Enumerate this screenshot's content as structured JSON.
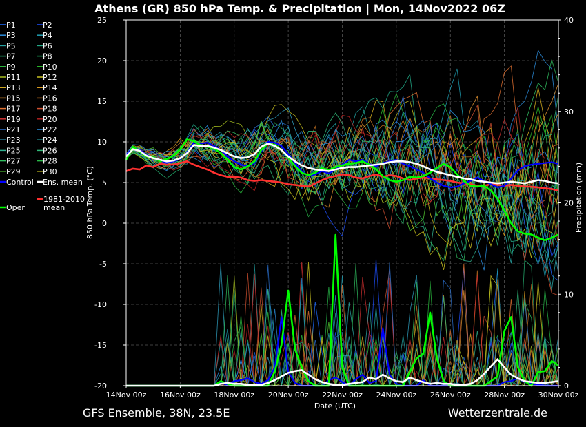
{
  "chart_data": {
    "type": "line",
    "title": "Athens  (GR)  850 hPa Temp. & Precipitation | Mon, 14Nov2022 06Z",
    "ylabel": "850 hPa Temp. (°C)",
    "y2label": "Precipitation (mm)",
    "xlabel": "Date (UTC)",
    "ylim": [
      -20,
      25
    ],
    "y2lim": [
      0,
      40
    ],
    "yticks": [
      25,
      20,
      15,
      10,
      5,
      0,
      -5,
      -10,
      -15,
      -20
    ],
    "y2ticks": [
      40,
      30,
      20,
      10,
      0
    ],
    "xlim": [
      "14Nov 00z",
      "30Nov 00z"
    ],
    "xticks": [
      "14Nov 00z",
      "16Nov 00z",
      "18Nov 00z",
      "20Nov 00z",
      "22Nov 00z",
      "24Nov 00z",
      "26Nov 00z",
      "28Nov 00z",
      "30Nov 00z"
    ],
    "grid": true,
    "footer_left": "GFS Ensemble, 38N, 23.5E",
    "footer_right": "Wetterzentrale.de",
    "legend": [
      {
        "name": "P1",
        "color": "#1e6bff"
      },
      {
        "name": "P2",
        "color": "#1e50ff"
      },
      {
        "name": "P3",
        "color": "#2b8cdb"
      },
      {
        "name": "P4",
        "color": "#1f9fb3"
      },
      {
        "name": "P5",
        "color": "#22a0a0"
      },
      {
        "name": "P6",
        "color": "#22aa88"
      },
      {
        "name": "P7",
        "color": "#25b070"
      },
      {
        "name": "P8",
        "color": "#1fb060"
      },
      {
        "name": "P9",
        "color": "#2cc040"
      },
      {
        "name": "P10",
        "color": "#2ac02a"
      },
      {
        "name": "P11",
        "color": "#a8c020"
      },
      {
        "name": "P12",
        "color": "#c8c020"
      },
      {
        "name": "P13",
        "color": "#d8b020"
      },
      {
        "name": "P14",
        "color": "#e0a020"
      },
      {
        "name": "P15",
        "color": "#e09030"
      },
      {
        "name": "P16",
        "color": "#c07020"
      },
      {
        "name": "P17",
        "color": "#e07030"
      },
      {
        "name": "P18",
        "color": "#d05030"
      },
      {
        "name": "P19",
        "color": "#d03030"
      },
      {
        "name": "P20",
        "color": "#b02020"
      },
      {
        "name": "P21",
        "color": "#2a70d0"
      },
      {
        "name": "P22",
        "color": "#2a90e0"
      },
      {
        "name": "P23",
        "color": "#30a0c0"
      },
      {
        "name": "P24",
        "color": "#2aa8a8"
      },
      {
        "name": "P25",
        "color": "#30b090"
      },
      {
        "name": "P26",
        "color": "#30b878"
      },
      {
        "name": "P27",
        "color": "#30c060"
      },
      {
        "name": "P28",
        "color": "#28b848"
      },
      {
        "name": "P29",
        "color": "#50c830"
      },
      {
        "name": "P30",
        "color": "#d0c820"
      },
      {
        "name": "Control",
        "color": "#0000ff"
      },
      {
        "name": "Ens. mean",
        "color": "#ffffff"
      },
      {
        "name": "Oper",
        "color": "#00ff00"
      },
      {
        "name": "1981-2010 mean",
        "color": "#ff3030"
      }
    ],
    "x_days": [
      0,
      0.25,
      0.5,
      0.75,
      1,
      1.25,
      1.5,
      1.75,
      2,
      2.25,
      2.5,
      2.75,
      3,
      3.25,
      3.5,
      3.75,
      4,
      4.25,
      4.5,
      4.75,
      5,
      5.25,
      5.5,
      5.75,
      6,
      6.25,
      6.5,
      6.75,
      7,
      7.25,
      7.5,
      7.75,
      8,
      8.25,
      8.5,
      8.75,
      9,
      9.25,
      9.5,
      9.75,
      10,
      10.25,
      10.5,
      10.75,
      11,
      11.25,
      11.5,
      11.75,
      12,
      12.25,
      12.5,
      12.75,
      13,
      13.25,
      13.5,
      13.75,
      14,
      14.25,
      14.5,
      14.75,
      15,
      15.25,
      15.5,
      15.75,
      16
    ],
    "series": [
      {
        "name": "Ens. mean",
        "color": "#ffffff",
        "axis": "temp",
        "values": [
          8.2,
          9.1,
          8.9,
          8.3,
          8.0,
          7.8,
          7.6,
          7.7,
          8.0,
          8.6,
          9.6,
          9.5,
          9.5,
          9.3,
          9.0,
          8.6,
          8.2,
          8.0,
          8.1,
          8.5,
          9.4,
          9.8,
          9.5,
          9.0,
          8.2,
          7.6,
          7.1,
          6.8,
          6.6,
          6.5,
          6.4,
          6.6,
          6.8,
          6.9,
          6.9,
          7.0,
          7.1,
          7.2,
          7.3,
          7.5,
          7.6,
          7.6,
          7.5,
          7.3,
          7.0,
          6.6,
          6.3,
          6.1,
          5.9,
          5.7,
          5.5,
          5.4,
          5.2,
          5.1,
          5.0,
          4.9,
          5.0,
          5.1,
          5.0,
          4.9,
          5.1,
          5.3,
          5.2,
          5.0,
          4.9
        ]
      },
      {
        "name": "Control",
        "color": "#0000ff",
        "axis": "temp",
        "values": [
          8.4,
          9.3,
          9.0,
          8.4,
          8.0,
          7.7,
          7.4,
          7.6,
          7.9,
          8.7,
          9.9,
          9.8,
          9.9,
          9.5,
          9.0,
          8.2,
          7.6,
          7.2,
          7.0,
          7.4,
          8.8,
          10.0,
          9.9,
          9.5,
          8.5,
          7.4,
          6.4,
          5.8,
          6.0,
          6.4,
          6.1,
          6.6,
          7.2,
          7.8,
          7.6,
          7.8,
          7.3,
          7.0,
          7.4,
          7.6,
          7.8,
          7.3,
          7.0,
          6.6,
          6.2,
          5.5,
          5.0,
          4.6,
          4.4,
          4.5,
          4.9,
          5.2,
          5.6,
          5.2,
          4.8,
          4.4,
          4.6,
          5.5,
          6.5,
          7.0,
          7.2,
          7.3,
          7.4,
          7.5,
          7.3
        ]
      },
      {
        "name": "Oper",
        "color": "#00ff00",
        "axis": "temp",
        "values": [
          7.8,
          9.4,
          8.8,
          8.2,
          8.1,
          7.6,
          7.9,
          8.3,
          9.1,
          10.3,
          10.1,
          9.6,
          9.4,
          9.2,
          8.6,
          7.8,
          6.9,
          6.6,
          7.0,
          7.6,
          9.0,
          9.8,
          9.6,
          9.0,
          8.1,
          7.0,
          6.2,
          5.9,
          6.2,
          6.8,
          6.5,
          6.9,
          7.1,
          7.3,
          7.4,
          7.6,
          7.2,
          6.6,
          5.8,
          5.3,
          5.1,
          5.3,
          5.7,
          5.6,
          5.8,
          6.2,
          6.8,
          7.3,
          6.9,
          6.0,
          5.2,
          4.6,
          4.5,
          4.6,
          4.0,
          3.0,
          1.5,
          0.0,
          -1.0,
          -1.3,
          -1.4,
          -1.8,
          -2.1,
          -1.8,
          -1.4
        ]
      },
      {
        "name": "1981-2010 mean",
        "color": "#ff3030",
        "axis": "temp",
        "values": [
          6.4,
          6.7,
          6.6,
          7.1,
          6.9,
          7.3,
          7.2,
          7.2,
          7.4,
          7.6,
          7.2,
          6.9,
          6.6,
          6.2,
          5.9,
          5.7,
          5.7,
          5.6,
          5.3,
          5.2,
          5.3,
          5.2,
          5.1,
          5.0,
          4.8,
          4.7,
          4.6,
          4.5,
          4.9,
          5.3,
          5.6,
          5.8,
          6.0,
          5.9,
          5.6,
          5.5,
          5.8,
          6.0,
          5.7,
          5.9,
          5.8,
          5.5,
          5.3,
          5.5,
          5.6,
          5.5,
          5.4,
          5.3,
          5.2,
          5.0,
          4.9,
          4.8,
          4.6,
          4.6,
          4.8,
          4.7,
          4.6,
          4.7,
          4.6,
          4.5,
          4.5,
          4.4,
          4.3,
          4.2,
          4.0
        ]
      },
      {
        "name": "Ens. mean",
        "color": "#ffffff",
        "axis": "precip",
        "values": [
          0,
          0,
          0,
          0,
          0,
          0,
          0,
          0,
          0,
          0,
          0,
          0,
          0,
          0,
          0.2,
          0.3,
          0.2,
          0.2,
          0.1,
          0.1,
          0.1,
          0.3,
          0.6,
          1,
          1.4,
          1.6,
          1.7,
          1.2,
          0.7,
          0.4,
          0.2,
          0.1,
          0.1,
          0.2,
          0.3,
          0.4,
          0.9,
          0.7,
          1.2,
          0.8,
          0.5,
          0.4,
          0.9,
          0.6,
          0.4,
          0.2,
          0.3,
          0.2,
          0.2,
          0.1,
          0.1,
          0.2,
          0.6,
          1.3,
          2.1,
          2.9,
          2.0,
          1.2,
          0.8,
          0.5,
          0.4,
          0.3,
          0.3,
          0.4,
          0.5
        ]
      },
      {
        "name": "Oper",
        "color": "#00ff00",
        "axis": "precip",
        "values": [
          0,
          0,
          0,
          0,
          0,
          0,
          0,
          0,
          0,
          0,
          0,
          0,
          0,
          0,
          0.5,
          0.2,
          0,
          0,
          0,
          0,
          0,
          0,
          1.5,
          4.5,
          10.4,
          4,
          2,
          0.5,
          0,
          0,
          0,
          16.5,
          2,
          0,
          0,
          0,
          0,
          0,
          0,
          0,
          0,
          0,
          1.5,
          3,
          3.5,
          8,
          3,
          0.5,
          0,
          0,
          0,
          0,
          0,
          0,
          0.5,
          1,
          6,
          7.5,
          2,
          0.5,
          0,
          1.5,
          1.6,
          2.7,
          2.2
        ]
      },
      {
        "name": "Control",
        "color": "#0000ff",
        "axis": "precip",
        "values": [
          0,
          0,
          0,
          0,
          0,
          0,
          0,
          0,
          0,
          0,
          0,
          0,
          0,
          0,
          0.3,
          0.1,
          0.5,
          0.6,
          0.8,
          0.4,
          0.2,
          0.6,
          2.0,
          7.5,
          1.5,
          0.3,
          0,
          0,
          0,
          0,
          0.6,
          0.9,
          0.4,
          0,
          0.7,
          1.2,
          0.3,
          0.5,
          6.3,
          1.2,
          0.2,
          0,
          0,
          0,
          0.6,
          0,
          0,
          0,
          0,
          0,
          0,
          0,
          0,
          0,
          0,
          0,
          0.4,
          0.5,
          0.8,
          0.4,
          0.2,
          0.1,
          0,
          0,
          0
        ]
      }
    ]
  }
}
